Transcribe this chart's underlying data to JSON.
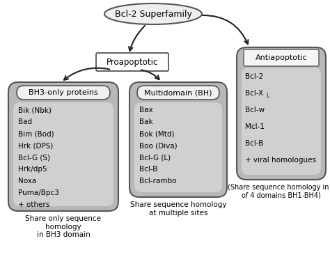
{
  "title": "Bcl-2 Superfamily",
  "proapoptotic_label": "Proapoptotic",
  "antiapoptotic_label": "Antiapoptotic",
  "bh3_label": "BH3-only proteins",
  "bh3_items": [
    "Bik (Nbk)",
    "Bad",
    "Bim (Bod)",
    "Hrk (DPS)",
    "Bcl-G (S)",
    "Hrk/dp5",
    "Noxa",
    "Puma/Bpc3",
    "+ others"
  ],
  "bh3_caption": "Share only sequence\nhomology\nin BH3 domain",
  "multi_label": "Multidomain (BH)",
  "multi_items": [
    "Bax",
    "Bak",
    "Bok (Mtd)",
    "Boo (Diva)",
    "Bcl-G (L)",
    "Bcl-B",
    "Bcl-rambo"
  ],
  "multi_caption": "Share sequence homology\nat multiple sites",
  "anti_items": [
    "Bcl-2",
    "Bcl-XL",
    "Bcl-w",
    "Mcl-1",
    "Bcl-B",
    "+ viral homologues"
  ],
  "anti_caption": "(Share sequence homology in 1\nof 4 domains BH1-BH4)",
  "bg_color": "#ffffff",
  "box_fill_outer": "#b8b8b8",
  "box_fill_inner": "#d0d0d0",
  "label_box_fill": "#f5f5f5",
  "ellipse_fill": "#efefef",
  "arrow_color": "#222222",
  "edge_color": "#555555"
}
